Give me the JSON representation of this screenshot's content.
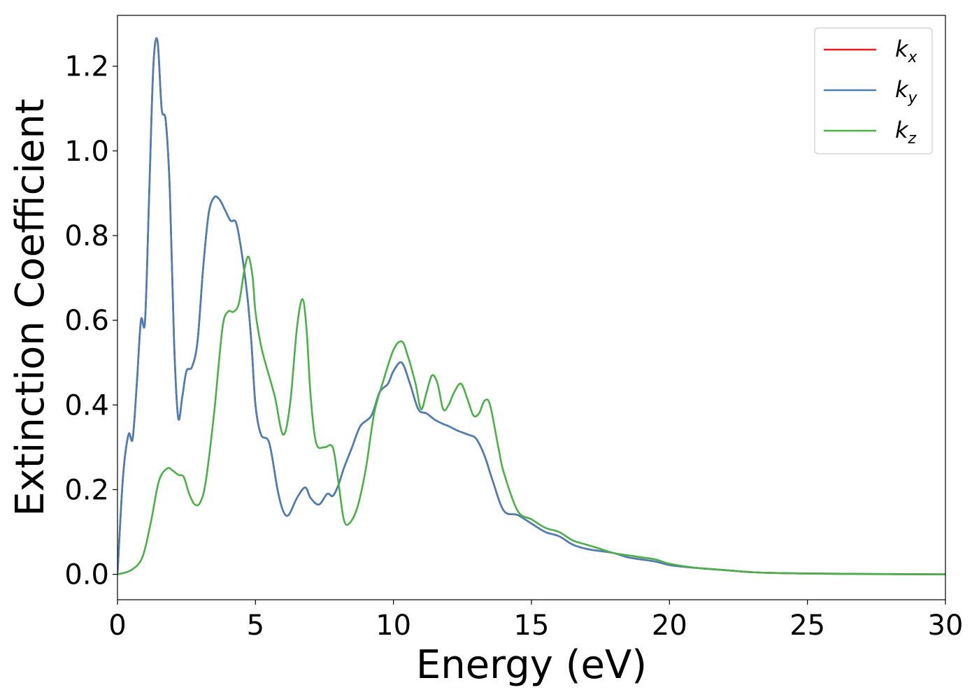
{
  "chart_data": {
    "type": "line",
    "xlabel": "Energy (eV)",
    "ylabel": "Extinction Coefficient",
    "xlim": [
      0,
      30
    ],
    "ylim": [
      -0.06,
      1.32
    ],
    "xticks": [
      0,
      5,
      10,
      15,
      20,
      25,
      30
    ],
    "xtick_labels": [
      "0",
      "5",
      "10",
      "15",
      "20",
      "25",
      "30"
    ],
    "yticks": [
      0.0,
      0.2,
      0.4,
      0.6,
      0.8,
      1.0,
      1.2
    ],
    "ytick_labels": [
      "0.0",
      "0.2",
      "0.4",
      "0.6",
      "0.8",
      "1.0",
      "1.2"
    ],
    "grid": false,
    "legend_position": "top-right",
    "series": [
      {
        "name": "k",
        "subscript": "x",
        "color": "#e41a1c",
        "x": [
          0,
          0.2,
          0.4,
          0.55,
          0.7,
          0.85,
          1.0,
          1.15,
          1.3,
          1.45,
          1.6,
          1.75,
          1.9,
          2.05,
          2.2,
          2.35,
          2.5,
          2.7,
          2.9,
          3.1,
          3.3,
          3.5,
          3.7,
          3.9,
          4.1,
          4.3,
          4.5,
          4.7,
          4.85,
          5.0,
          5.2,
          5.5,
          5.8,
          6.0,
          6.2,
          6.5,
          6.8,
          7.0,
          7.3,
          7.6,
          7.8,
          8.0,
          8.2,
          8.5,
          8.8,
          9.2,
          9.5,
          9.8,
          10.0,
          10.3,
          10.6,
          10.9,
          11.2,
          11.5,
          11.8,
          12.0,
          12.3,
          12.7,
          13.0,
          13.3,
          13.6,
          14.0,
          14.5,
          15.0,
          15.5,
          16.0,
          16.5,
          17.0,
          17.5,
          18.0,
          18.5,
          19.0,
          19.5,
          20.0,
          20.5,
          21.0,
          22.0,
          23.0,
          24.0,
          25.0,
          27.0,
          30.0
        ],
        "y": [
          0.0,
          0.23,
          0.33,
          0.32,
          0.45,
          0.6,
          0.6,
          0.9,
          1.2,
          1.26,
          1.1,
          1.07,
          0.9,
          0.55,
          0.37,
          0.42,
          0.48,
          0.49,
          0.55,
          0.72,
          0.85,
          0.89,
          0.885,
          0.86,
          0.835,
          0.83,
          0.76,
          0.66,
          0.55,
          0.4,
          0.33,
          0.31,
          0.2,
          0.15,
          0.14,
          0.18,
          0.205,
          0.18,
          0.165,
          0.19,
          0.185,
          0.21,
          0.25,
          0.3,
          0.35,
          0.375,
          0.43,
          0.45,
          0.48,
          0.5,
          0.45,
          0.39,
          0.38,
          0.365,
          0.355,
          0.35,
          0.34,
          0.33,
          0.32,
          0.28,
          0.22,
          0.15,
          0.14,
          0.12,
          0.1,
          0.09,
          0.07,
          0.06,
          0.055,
          0.05,
          0.04,
          0.035,
          0.03,
          0.022,
          0.018,
          0.015,
          0.01,
          0.005,
          0.003,
          0.002,
          0.001,
          0.0
        ]
      },
      {
        "name": "k",
        "subscript": "y",
        "color": "#4a7fb5",
        "x": [
          0,
          0.2,
          0.4,
          0.55,
          0.7,
          0.85,
          1.0,
          1.15,
          1.3,
          1.45,
          1.6,
          1.75,
          1.9,
          2.05,
          2.2,
          2.35,
          2.5,
          2.7,
          2.9,
          3.1,
          3.3,
          3.5,
          3.7,
          3.9,
          4.1,
          4.3,
          4.5,
          4.7,
          4.85,
          5.0,
          5.2,
          5.5,
          5.8,
          6.0,
          6.2,
          6.5,
          6.8,
          7.0,
          7.3,
          7.6,
          7.8,
          8.0,
          8.2,
          8.5,
          8.8,
          9.2,
          9.5,
          9.8,
          10.0,
          10.3,
          10.6,
          10.9,
          11.2,
          11.5,
          11.8,
          12.0,
          12.3,
          12.7,
          13.0,
          13.3,
          13.6,
          14.0,
          14.5,
          15.0,
          15.5,
          16.0,
          16.5,
          17.0,
          17.5,
          18.0,
          18.5,
          19.0,
          19.5,
          20.0,
          20.5,
          21.0,
          22.0,
          23.0,
          24.0,
          25.0,
          27.0,
          30.0
        ],
        "y": [
          0.0,
          0.23,
          0.33,
          0.32,
          0.45,
          0.6,
          0.6,
          0.9,
          1.2,
          1.26,
          1.1,
          1.07,
          0.9,
          0.55,
          0.37,
          0.42,
          0.48,
          0.49,
          0.55,
          0.72,
          0.85,
          0.89,
          0.885,
          0.86,
          0.835,
          0.83,
          0.76,
          0.66,
          0.55,
          0.4,
          0.33,
          0.31,
          0.2,
          0.15,
          0.14,
          0.18,
          0.205,
          0.18,
          0.165,
          0.19,
          0.185,
          0.21,
          0.25,
          0.3,
          0.35,
          0.375,
          0.43,
          0.45,
          0.48,
          0.5,
          0.45,
          0.39,
          0.38,
          0.365,
          0.355,
          0.35,
          0.34,
          0.33,
          0.32,
          0.28,
          0.22,
          0.15,
          0.14,
          0.12,
          0.1,
          0.09,
          0.07,
          0.06,
          0.055,
          0.05,
          0.04,
          0.035,
          0.03,
          0.022,
          0.018,
          0.015,
          0.01,
          0.005,
          0.003,
          0.002,
          0.001,
          0.0
        ]
      },
      {
        "name": "k",
        "subscript": "z",
        "color": "#4daf4a",
        "x": [
          0,
          0.5,
          0.9,
          1.2,
          1.5,
          1.8,
          2.0,
          2.2,
          2.4,
          2.6,
          2.8,
          3.0,
          3.2,
          3.5,
          3.8,
          4.0,
          4.2,
          4.4,
          4.6,
          4.75,
          4.9,
          5.0,
          5.2,
          5.4,
          5.7,
          6.0,
          6.25,
          6.5,
          6.7,
          6.85,
          7.0,
          7.2,
          7.5,
          7.8,
          8.0,
          8.2,
          8.4,
          8.7,
          9.0,
          9.3,
          9.6,
          10.0,
          10.3,
          10.5,
          10.8,
          11.0,
          11.2,
          11.4,
          11.6,
          11.8,
          12.0,
          12.2,
          12.45,
          12.7,
          12.9,
          13.1,
          13.3,
          13.5,
          13.8,
          14.0,
          14.5,
          15.0,
          15.5,
          16.0,
          16.5,
          17.0,
          17.5,
          18.0,
          18.5,
          19.0,
          19.5,
          20.0,
          21.0,
          22.0,
          23.0,
          24.0,
          26.0,
          30.0
        ],
        "y": [
          0.0,
          0.01,
          0.04,
          0.12,
          0.22,
          0.25,
          0.245,
          0.235,
          0.23,
          0.19,
          0.165,
          0.17,
          0.22,
          0.38,
          0.58,
          0.62,
          0.62,
          0.64,
          0.72,
          0.75,
          0.7,
          0.62,
          0.54,
          0.49,
          0.42,
          0.33,
          0.4,
          0.58,
          0.65,
          0.58,
          0.42,
          0.31,
          0.3,
          0.3,
          0.22,
          0.13,
          0.12,
          0.16,
          0.25,
          0.38,
          0.45,
          0.53,
          0.55,
          0.52,
          0.45,
          0.39,
          0.43,
          0.47,
          0.45,
          0.39,
          0.4,
          0.43,
          0.45,
          0.41,
          0.375,
          0.38,
          0.41,
          0.4,
          0.3,
          0.24,
          0.15,
          0.13,
          0.11,
          0.1,
          0.08,
          0.07,
          0.06,
          0.05,
          0.045,
          0.04,
          0.035,
          0.025,
          0.015,
          0.01,
          0.005,
          0.003,
          0.001,
          0.0
        ]
      }
    ]
  }
}
